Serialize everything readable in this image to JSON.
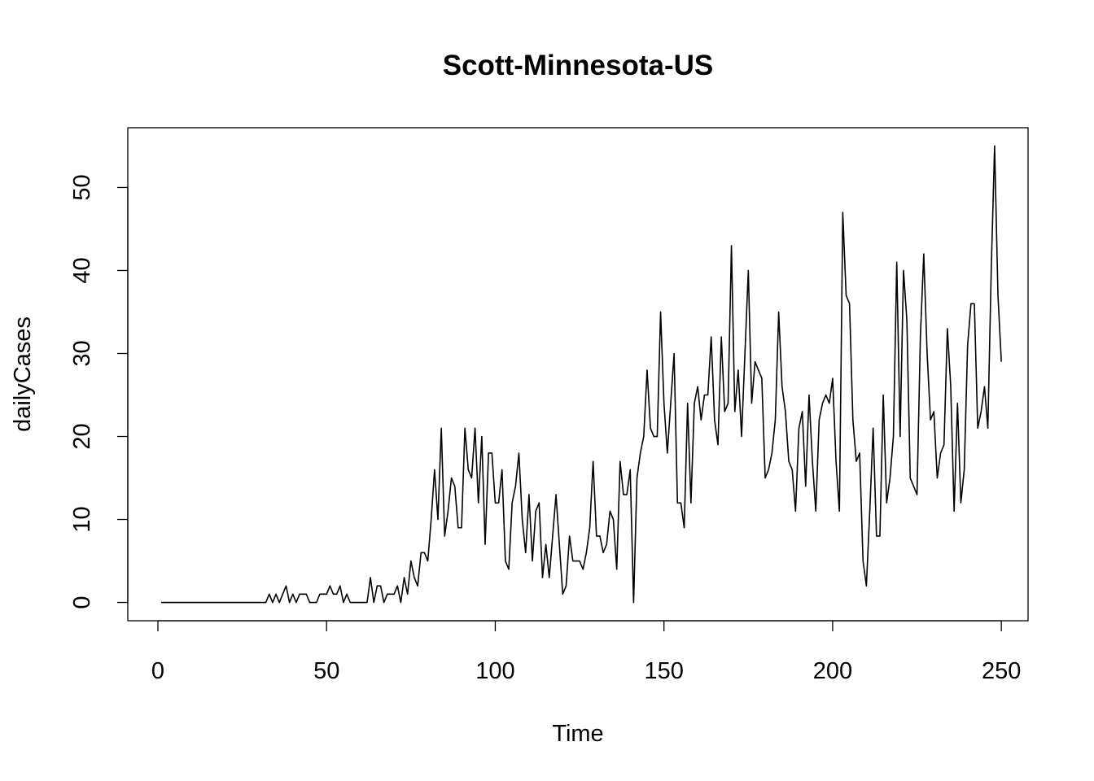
{
  "chart_data": {
    "type": "line",
    "title": "Scott-Minnesota-US",
    "xlabel": "Time",
    "ylabel": "dailyCases",
    "xlim": [
      -8.92,
      257.92
    ],
    "ylim": [
      -2.2,
      57.2
    ],
    "x_ticks": [
      0,
      50,
      100,
      150,
      200,
      250
    ],
    "y_ticks": [
      0,
      10,
      20,
      30,
      40,
      50
    ],
    "x_tick_labels": [
      "0",
      "50",
      "100",
      "150",
      "200",
      "250"
    ],
    "y_tick_labels": [
      "0",
      "10",
      "20",
      "30",
      "40",
      "50"
    ],
    "grid": false,
    "legend": "none",
    "line_color": "#000000",
    "x_start": 1,
    "values": [
      0,
      0,
      0,
      0,
      0,
      0,
      0,
      0,
      0,
      0,
      0,
      0,
      0,
      0,
      0,
      0,
      0,
      0,
      0,
      0,
      0,
      0,
      0,
      0,
      0,
      0,
      0,
      0,
      0,
      0,
      0,
      0,
      1,
      0,
      1,
      0,
      1,
      2,
      0,
      1,
      0,
      1,
      1,
      1,
      0,
      0,
      0,
      1,
      1,
      1,
      2,
      1,
      1,
      2,
      0,
      1,
      0,
      0,
      0,
      0,
      0,
      0,
      3,
      0,
      2,
      2,
      0,
      1,
      1,
      1,
      2,
      0,
      3,
      1,
      5,
      3,
      2,
      6,
      6,
      5,
      10,
      16,
      10,
      21,
      8,
      11,
      15,
      14,
      9,
      9,
      21,
      16,
      15,
      21,
      12,
      20,
      7,
      18,
      18,
      12,
      12,
      16,
      5,
      4,
      12,
      14,
      18,
      10,
      6,
      13,
      5,
      11,
      12,
      3,
      7,
      3,
      8,
      13,
      7,
      1,
      2,
      8,
      5,
      5,
      5,
      4,
      6,
      9,
      17,
      8,
      8,
      6,
      7,
      11,
      10,
      4,
      17,
      13,
      13,
      16,
      0,
      15,
      18,
      20,
      28,
      21,
      20,
      20,
      35,
      24,
      18,
      24,
      30,
      12,
      12,
      9,
      24,
      12,
      24,
      26,
      22,
      25,
      25,
      32,
      22,
      19,
      32,
      23,
      24,
      43,
      23,
      28,
      20,
      30,
      40,
      24,
      29,
      28,
      27,
      15,
      16,
      18,
      22,
      35,
      26,
      23,
      17,
      16,
      11,
      21,
      23,
      14,
      25,
      17,
      11,
      22,
      24,
      25,
      24,
      27,
      17,
      11,
      47,
      37,
      36,
      22,
      17,
      18,
      5,
      2,
      11,
      21,
      8,
      8,
      25,
      12,
      15,
      20,
      41,
      20,
      40,
      34,
      15,
      14,
      13,
      32,
      42,
      30,
      22,
      23,
      15,
      18,
      19,
      33,
      26,
      11,
      24,
      12,
      16,
      31,
      36,
      36,
      21,
      23,
      26,
      21,
      40,
      55,
      37,
      29
    ]
  }
}
